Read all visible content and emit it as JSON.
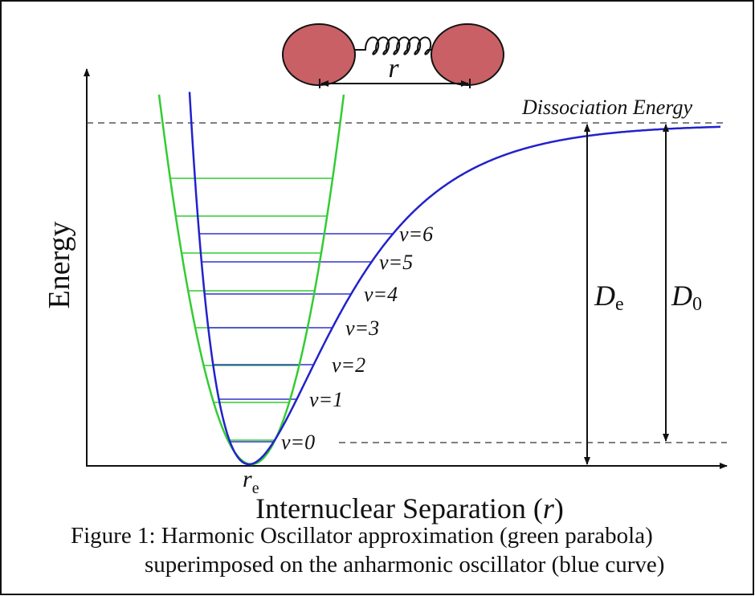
{
  "diagram": {
    "molecule_label": "r",
    "dissociation_label": "Dissociation Energy",
    "y_axis_label": "Energy",
    "x_axis_label": [
      "Internuclear Separation (",
      "r",
      ")"
    ],
    "levels": [
      "v=0",
      "v=1",
      "v=2",
      "v=3",
      "v=4",
      "v=5",
      "v=6"
    ],
    "equilibrium": {
      "symbol": "r",
      "subscript": "e"
    },
    "De": {
      "symbol": "D",
      "subscript": "e"
    },
    "D0": {
      "symbol": "D",
      "subscript": "0"
    },
    "caption": [
      "Figure 1: Harmonic Oscillator approximation (green parabola)",
      "superimposed on the anharmonic oscillator (blue curve)"
    ]
  }
}
